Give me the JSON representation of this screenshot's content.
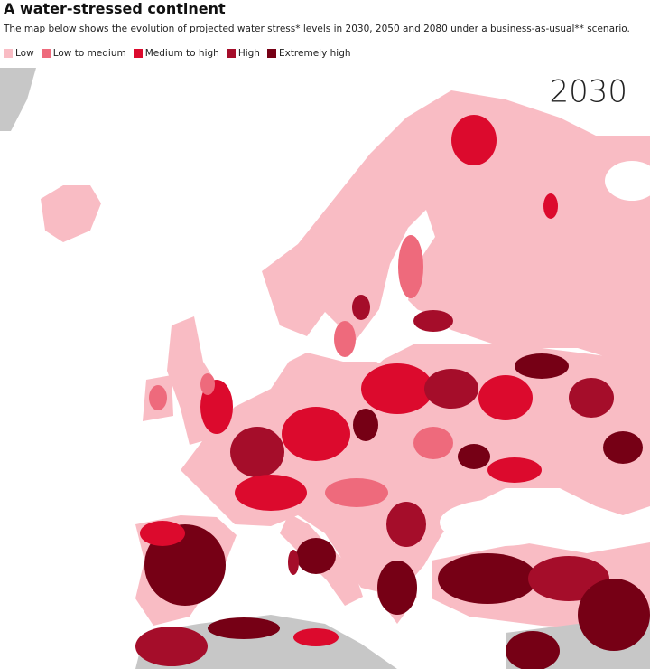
{
  "header": {
    "title": "A water-stressed continent",
    "subtitle": "The map below shows the evolution of projected water stress* levels in 2030, 2050 and 2080 under a business-as-usual** scenario."
  },
  "legend": [
    {
      "label": "Low",
      "color": "#f9bcc4"
    },
    {
      "label": "Low to medium",
      "color": "#ee6a7c"
    },
    {
      "label": "Medium to high",
      "color": "#dc0a2d"
    },
    {
      "label": "High",
      "color": "#a50d2a"
    },
    {
      "label": "Extremely high",
      "color": "#760015"
    }
  ],
  "map": {
    "year": "2030"
  }
}
